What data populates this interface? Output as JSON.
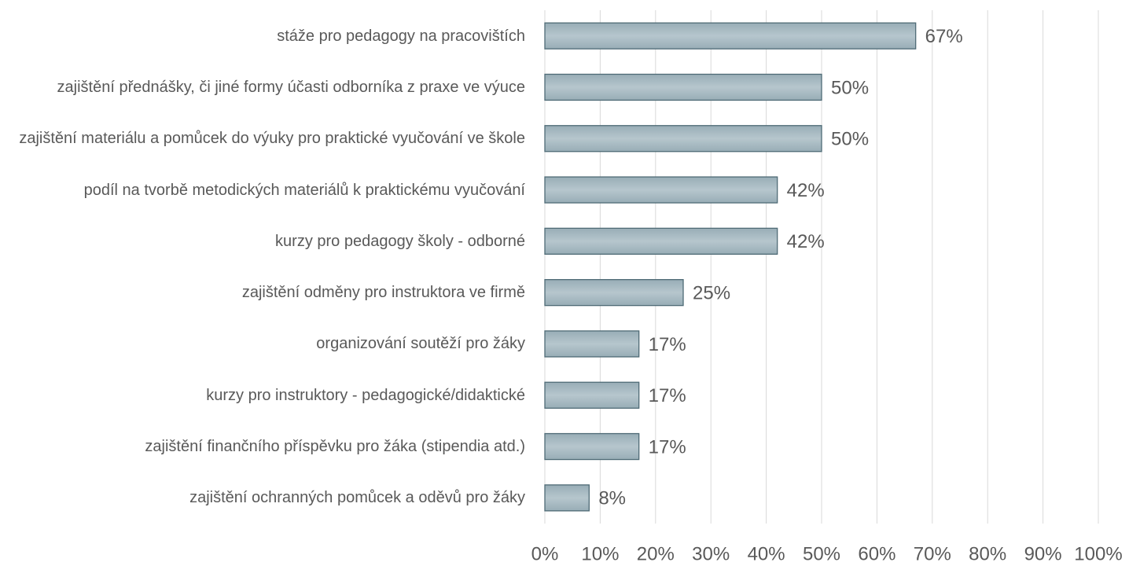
{
  "chart_data": {
    "type": "hbar",
    "categories": [
      "stáže pro pedagogy na pracovištích",
      "zajištění přednášky, či jiné formy účasti odborníka z praxe ve výuce",
      "zajištění materiálu a pomůcek do výuky pro praktické vyučování ve škole",
      "podíl na tvorbě metodických materiálů k praktickému vyučování",
      "kurzy pro pedagogy školy - odborné",
      "zajištění odměny pro instruktora ve firmě",
      "organizování soutěží pro žáky",
      "kurzy pro instruktory - pedagogické/didaktické",
      "zajištění finančního příspěvku pro žáka (stipendia atd.)",
      "zajištění ochranných pomůcek a oděvů pro žáky"
    ],
    "values": [
      67,
      50,
      50,
      42,
      42,
      25,
      17,
      17,
      17,
      8
    ],
    "value_labels": [
      "67%",
      "50%",
      "50%",
      "42%",
      "42%",
      "25%",
      "17%",
      "17%",
      "17%",
      "8%"
    ],
    "color": "#a5b8c0",
    "xlim": [
      0,
      100
    ],
    "xticks": [
      {
        "value": 0,
        "label": "0%"
      },
      {
        "value": 10,
        "label": "10%"
      },
      {
        "value": 20,
        "label": "20%"
      },
      {
        "value": 30,
        "label": "30%"
      },
      {
        "value": 40,
        "label": "40%"
      },
      {
        "value": 50,
        "label": "50%"
      },
      {
        "value": 60,
        "label": "60%"
      },
      {
        "value": 70,
        "label": "70%"
      },
      {
        "value": 80,
        "label": "80%"
      },
      {
        "value": 90,
        "label": "90%"
      },
      {
        "value": 100,
        "label": "100%"
      }
    ],
    "grid": true
  }
}
